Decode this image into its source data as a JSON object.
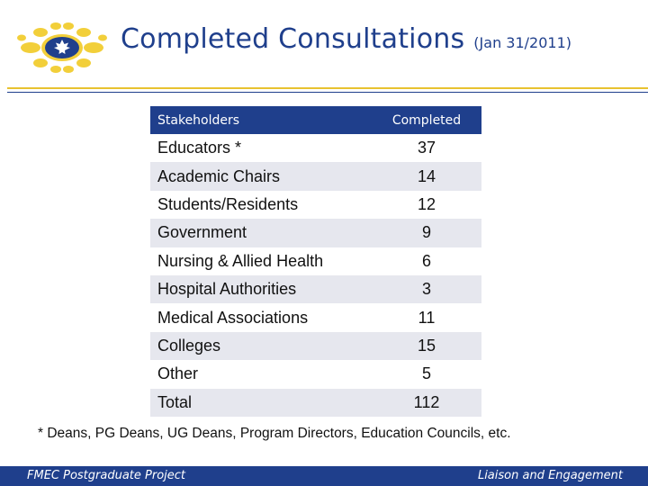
{
  "header": {
    "title": "Completed Consultations",
    "subtitle": "(Jan 31/2011)"
  },
  "table": {
    "columns": [
      "Stakeholders",
      "Completed"
    ],
    "rows": [
      {
        "stakeholder": "Educators *",
        "completed": "37"
      },
      {
        "stakeholder": "Academic Chairs",
        "completed": "14"
      },
      {
        "stakeholder": "Students/Residents",
        "completed": "12"
      },
      {
        "stakeholder": "Government",
        "completed": "9"
      },
      {
        "stakeholder": "Nursing & Allied Health",
        "completed": "6"
      },
      {
        "stakeholder": "Hospital  Authorities",
        "completed": "3"
      },
      {
        "stakeholder": "Medical Associations",
        "completed": "11"
      },
      {
        "stakeholder": "Colleges",
        "completed": "15"
      },
      {
        "stakeholder": "Other",
        "completed": "5"
      },
      {
        "stakeholder": "Total",
        "completed": "112"
      }
    ]
  },
  "footnote": "* Deans, PG Deans, UG Deans, Program Directors, Education Councils, etc.",
  "footer": {
    "left": "FMEC Postgraduate Project",
    "right": "Liaison and Engagement"
  },
  "colors": {
    "brand_blue": "#1f3f8c",
    "accent_yellow": "#e8c230",
    "row_band": "#e6e7ee"
  }
}
